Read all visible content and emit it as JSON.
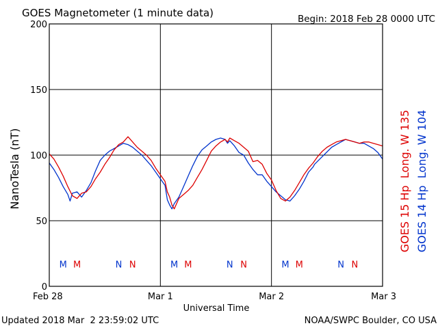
{
  "chart_data": {
    "type": "line",
    "title": "GOES Magnetometer (1 minute data)",
    "begin": "Begin:  2018 Feb 28 0000 UTC",
    "xlabel": "Universal Time",
    "ylabel": "NanoTesla (nT)",
    "xlim": [
      0,
      72
    ],
    "ylim": [
      0,
      200
    ],
    "y_ticks": [
      0,
      50,
      100,
      150,
      200
    ],
    "x_ticks": [
      {
        "label": "Feb 28",
        "hour": 0
      },
      {
        "label": "Mar 1",
        "hour": 24
      },
      {
        "label": "Mar 2",
        "hour": 48
      },
      {
        "label": "Mar 3",
        "hour": 72
      }
    ],
    "grid": true,
    "series": [
      {
        "name": "GOES 15 Hp  Long. W 135",
        "color": "#dd0000",
        "x": [
          0,
          1,
          2,
          3,
          4,
          5,
          6,
          7,
          8,
          9,
          10,
          11,
          12,
          13,
          14,
          15,
          16,
          17,
          18,
          19,
          20,
          21,
          22,
          23,
          24,
          25,
          25.5,
          26,
          26.5,
          27,
          28,
          29,
          30,
          31,
          32,
          33,
          34,
          35,
          36,
          37,
          38,
          38.5,
          39,
          40,
          41,
          42,
          43,
          44,
          45,
          46,
          47,
          48,
          49,
          50,
          51,
          52,
          53,
          54,
          55,
          56,
          57,
          58,
          59,
          60,
          61,
          62,
          63,
          64,
          65,
          66,
          67,
          68,
          69,
          70,
          71,
          72
        ],
        "values": [
          101,
          97,
          91,
          84,
          76,
          69,
          67,
          71,
          72,
          76,
          82,
          87,
          93,
          98,
          104,
          108,
          110,
          114,
          110,
          106,
          103,
          100,
          96,
          90,
          85,
          80,
          72,
          68,
          62,
          59,
          67,
          70,
          73,
          77,
          83,
          89,
          96,
          103,
          107,
          110,
          112,
          110,
          113,
          111,
          109,
          106,
          103,
          95,
          96,
          93,
          86,
          81,
          73,
          67,
          65,
          68,
          73,
          79,
          85,
          90,
          94,
          99,
          103,
          106,
          108,
          110,
          111,
          112,
          111,
          110,
          109,
          110,
          110,
          109,
          108,
          107
        ]
      },
      {
        "name": "GOES 14 Hp  Long. W 104",
        "color": "#0033cc",
        "x": [
          0,
          1,
          2,
          3,
          4,
          4.5,
          5,
          6,
          7,
          8,
          9,
          10,
          11,
          12,
          13,
          14,
          15,
          16,
          17,
          18,
          19,
          20,
          21,
          22,
          23,
          24,
          25,
          25.5,
          26,
          26.5,
          27,
          28,
          29,
          30,
          31,
          32,
          33,
          34,
          35,
          36,
          37,
          38,
          38.5,
          39,
          40,
          41,
          42,
          43,
          44,
          45,
          46,
          47,
          48,
          49,
          50,
          51,
          52,
          53,
          54,
          55,
          56,
          57,
          57.3,
          61,
          62,
          63,
          64,
          65,
          66,
          67,
          68,
          69,
          70,
          71,
          72
        ],
        "values": [
          94,
          89,
          83,
          76,
          70,
          65,
          71,
          72,
          68,
          73,
          79,
          88,
          96,
          100,
          103,
          105,
          107,
          109,
          108,
          106,
          103,
          100,
          96,
          92,
          87,
          82,
          77,
          66,
          62,
          59,
          63,
          68,
          76,
          84,
          92,
          99,
          104,
          107,
          110,
          112,
          113,
          112,
          109,
          111,
          107,
          102,
          100,
          94,
          89,
          85,
          85,
          80,
          76,
          72,
          69,
          66,
          65,
          69,
          74,
          80,
          87,
          91,
          93,
          106,
          108,
          110,
          112,
          111,
          110,
          109,
          109,
          107,
          105,
          102,
          97
        ]
      }
    ],
    "markers": [
      {
        "letter": "M",
        "hour": 3,
        "color": "#0033cc"
      },
      {
        "letter": "M",
        "hour": 6,
        "color": "#dd0000"
      },
      {
        "letter": "N",
        "hour": 15,
        "color": "#0033cc"
      },
      {
        "letter": "N",
        "hour": 18,
        "color": "#dd0000"
      },
      {
        "letter": "M",
        "hour": 27,
        "color": "#0033cc"
      },
      {
        "letter": "M",
        "hour": 30,
        "color": "#dd0000"
      },
      {
        "letter": "N",
        "hour": 39,
        "color": "#0033cc"
      },
      {
        "letter": "N",
        "hour": 42,
        "color": "#dd0000"
      },
      {
        "letter": "M",
        "hour": 51,
        "color": "#0033cc"
      },
      {
        "letter": "M",
        "hour": 54,
        "color": "#dd0000"
      },
      {
        "letter": "N",
        "hour": 63,
        "color": "#0033cc"
      },
      {
        "letter": "N",
        "hour": 66,
        "color": "#dd0000"
      }
    ],
    "marker_level": 17,
    "footer_left": "Updated 2018 Mar  2 23:59:02 UTC",
    "footer_right": "NOAA/SWPC Boulder, CO USA"
  }
}
